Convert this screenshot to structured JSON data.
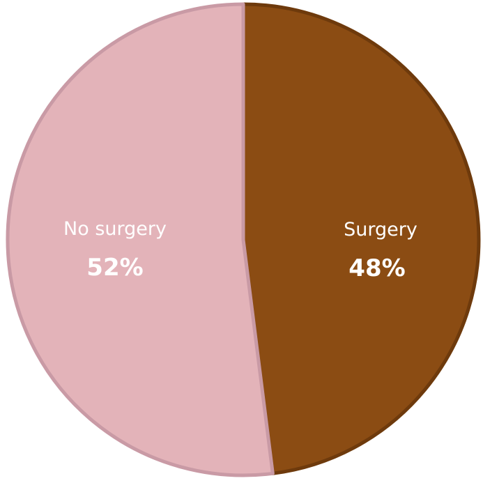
{
  "chart_data": {
    "type": "pie",
    "slices": [
      {
        "label": "Surgery",
        "value": 48,
        "value_label": "48%",
        "color": "#8B4C13",
        "edge_color": "#6E3A0C"
      },
      {
        "label": "No surgery",
        "value": 52,
        "value_label": "52%",
        "color": "#E3B3B9",
        "edge_color": "#C99AA5"
      }
    ],
    "start_angle": "12 o'clock",
    "direction": "clockwise",
    "label_color": "#FFFFFF",
    "legend": "none"
  }
}
